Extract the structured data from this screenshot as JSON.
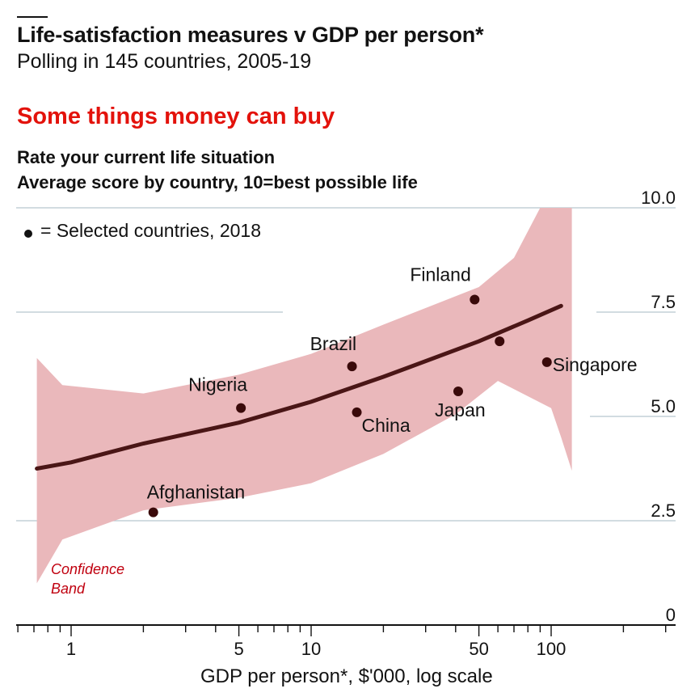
{
  "header": {
    "title": "Life-satisfaction measures v GDP per person*",
    "subtitle": "Polling in 145 countries, 2005-19"
  },
  "panel": {
    "title": "Some things money can buy",
    "subtitle_line1": "Rate your current life situation",
    "subtitle_line2": "Average score by country, 10=best possible life"
  },
  "legend": {
    "marker_label": "= Selected countries, 2018"
  },
  "band_label_line1": "Confidence",
  "band_label_line2": "Band",
  "colors": {
    "band": "#eab8bb",
    "trend": "#4a1616",
    "points": "#3a0a0a",
    "band_label": "#c0000f",
    "title_red": "#e3120b"
  },
  "chart_data": {
    "type": "scatter",
    "title": "Some things money can buy",
    "xlabel": "GDP per person*, $'000, log scale",
    "ylabel": "Rate your current life situation",
    "x_scale": "log",
    "xlim": [
      0.65,
      280
    ],
    "ylim": [
      0,
      10
    ],
    "x_ticks": [
      1,
      5,
      10,
      50,
      100
    ],
    "x_tick_labels": [
      "1",
      "5",
      "10",
      "50",
      "100"
    ],
    "y_ticks": [
      0,
      2.5,
      5.0,
      7.5,
      10.0
    ],
    "y_tick_labels": [
      "0",
      "2.5",
      "5.0",
      "7.5",
      "10.0"
    ],
    "grid": true,
    "points": [
      {
        "label": "Afghanistan",
        "x": 2.2,
        "y": 2.7
      },
      {
        "label": "Nigeria",
        "x": 5.1,
        "y": 5.2
      },
      {
        "label": "Brazil",
        "x": 14.8,
        "y": 6.2
      },
      {
        "label": "China",
        "x": 15.5,
        "y": 5.1
      },
      {
        "label": "Japan",
        "x": 41,
        "y": 5.6
      },
      {
        "label": "Finland",
        "x": 48,
        "y": 7.8
      },
      {
        "label": "",
        "x": 61,
        "y": 6.8
      },
      {
        "label": "Singapore",
        "x": 96,
        "y": 6.3
      }
    ],
    "trend": [
      {
        "x": 0.72,
        "y": 3.75
      },
      {
        "x": 1,
        "y": 3.9
      },
      {
        "x": 2,
        "y": 4.35
      },
      {
        "x": 5,
        "y": 4.85
      },
      {
        "x": 10,
        "y": 5.35
      },
      {
        "x": 20,
        "y": 5.95
      },
      {
        "x": 50,
        "y": 6.8
      },
      {
        "x": 80,
        "y": 7.3
      },
      {
        "x": 110,
        "y": 7.65
      }
    ],
    "band_upper": [
      {
        "x": 0.72,
        "y": 6.4
      },
      {
        "x": 0.92,
        "y": 5.75
      },
      {
        "x": 2,
        "y": 5.55
      },
      {
        "x": 5,
        "y": 6.0
      },
      {
        "x": 10,
        "y": 6.5
      },
      {
        "x": 20,
        "y": 7.2
      },
      {
        "x": 50,
        "y": 8.1
      },
      {
        "x": 70,
        "y": 8.8
      },
      {
        "x": 90,
        "y": 10.0
      },
      {
        "x": 122,
        "y": 10.0
      }
    ],
    "band_lower": [
      {
        "x": 122,
        "y": 3.7
      },
      {
        "x": 110,
        "y": 4.5
      },
      {
        "x": 100,
        "y": 5.2
      },
      {
        "x": 60,
        "y": 5.85
      },
      {
        "x": 40,
        "y": 5.05
      },
      {
        "x": 20,
        "y": 4.1
      },
      {
        "x": 10,
        "y": 3.4
      },
      {
        "x": 5,
        "y": 3.05
      },
      {
        "x": 2,
        "y": 2.75
      },
      {
        "x": 0.92,
        "y": 2.05
      },
      {
        "x": 0.72,
        "y": 1.0
      }
    ]
  }
}
